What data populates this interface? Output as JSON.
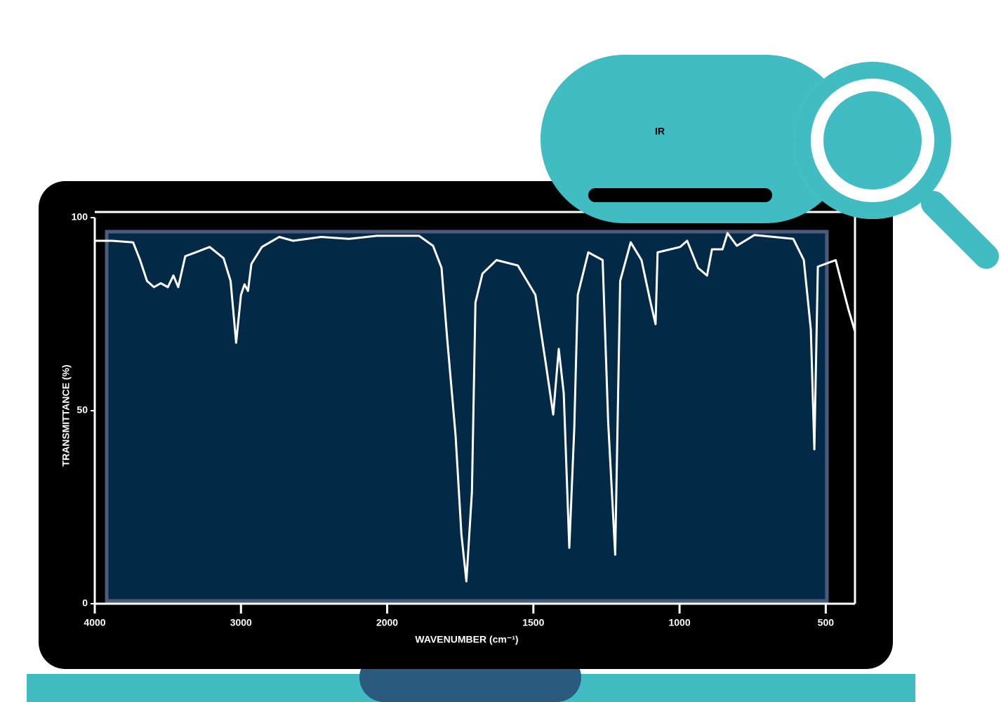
{
  "chart_data": {
    "type": "line",
    "title": "IR",
    "xlabel": "WAVENUMBER (cm⁻¹)",
    "ylabel": "TRANSMITTANCE (%)",
    "x": [
      4000,
      3881,
      3738,
      3690,
      3643,
      3595,
      3548,
      3500,
      3462,
      3429,
      3381,
      3310,
      3214,
      3119,
      3071,
      3033,
      3000,
      2976,
      2952,
      2929,
      2857,
      2738,
      2643,
      2452,
      2262,
      2071,
      1891,
      1843,
      1814,
      1795,
      1766,
      1746,
      1729,
      1710,
      1698,
      1674,
      1626,
      1553,
      1493,
      1457,
      1432,
      1413,
      1396,
      1377,
      1360,
      1348,
      1312,
      1263,
      1244,
      1220,
      1203,
      1167,
      1130,
      1099,
      1082,
      1075,
      998,
      974,
      937,
      906,
      889,
      853,
      836,
      804,
      744,
      611,
      575,
      551,
      539,
      527,
      466,
      423,
      400
    ],
    "series": [
      {
        "color": "#ffffff",
        "values": [
          94,
          94,
          93.6,
          89,
          83.6,
          82,
          83,
          82,
          85,
          82,
          90,
          91,
          92.4,
          89.5,
          83.6,
          67.6,
          80,
          82.7,
          81,
          88,
          92.4,
          95,
          94,
          95,
          94.5,
          95.3,
          95.3,
          92.7,
          87,
          69,
          43.6,
          18,
          5.8,
          29,
          78,
          85.5,
          89,
          87.6,
          80,
          62,
          49,
          66,
          54.5,
          14.5,
          45.5,
          80,
          91,
          89,
          47,
          12.7,
          83.6,
          93.6,
          89,
          78,
          72.4,
          91,
          92.4,
          94,
          87,
          85,
          91.8,
          91.8,
          96,
          92.7,
          95.5,
          94.5,
          89,
          71,
          40,
          87.3,
          89,
          76.4,
          70.5
        ]
      }
    ],
    "xlim": [
      4000,
      400
    ],
    "xticks": [
      4000,
      3000,
      2000,
      1500,
      1000,
      500
    ],
    "x_scale_break": 2000,
    "ylim": [
      0,
      100
    ],
    "yticks": [
      0,
      50,
      100
    ]
  }
}
